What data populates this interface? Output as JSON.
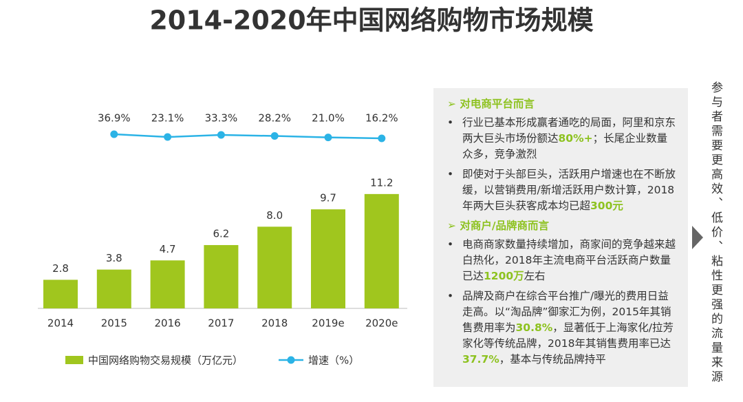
{
  "chart_data": {
    "type": "bar-line",
    "title": "2014-2020年中国网络购物市场规模",
    "categories": [
      "2014",
      "2015",
      "2016",
      "2017",
      "2018",
      "2019e",
      "2020e"
    ],
    "series": [
      {
        "name": "中国网络购物交易规模（万亿元）",
        "color": "#a0c61e",
        "values": [
          2.8,
          3.8,
          4.7,
          6.2,
          8,
          9.7,
          11.2
        ],
        "value_labels": [
          "2.8",
          "3.8",
          "4.7",
          "6.2",
          "8.0",
          "9.7",
          "11.2"
        ]
      },
      {
        "name": "增速（%）",
        "color": "#2bb3e6",
        "axis": "y2",
        "values": [
          null,
          36.9,
          23.1,
          33.3,
          28.2,
          21,
          16.2
        ],
        "value_labels": [
          null,
          "36.9%",
          "23.1%",
          "33.3%",
          "28.2%",
          "21.0%",
          "16.2%"
        ]
      }
    ],
    "ylim": [
      0,
      12
    ],
    "y2lim": [
      0,
      100
    ]
  },
  "panel": {
    "sections": [
      {
        "heading": "对电商平台而言",
        "bullets": [
          [
            "行业已基本形成赢者通吃的局面，阿里和京东两大巨头市场份额达",
            "80%+",
            "；长尾企业数量众多，竞争激烈"
          ],
          [
            "即使对于头部巨头，活跃用户增速也在不断放缓，以营销费用/新增活跃用户数计算，2018年两大巨头获客成本均已超",
            "300元"
          ]
        ]
      },
      {
        "heading": "对商户/品牌商而言",
        "bullets": [
          [
            "电商商家数量持续增加，商家间的竞争越来越白热化，2018年主流电商平台活跃商户数量已达",
            "1200万",
            "左右"
          ],
          [
            "品牌及商户在综合平台推广/曝光的费用日益走高。以“淘品牌”御家汇为例，2015年其销售费用率为",
            "30.8%",
            "，显著低于上海家化/拉芳家化等传统品牌，2018年其销售费用率已达",
            "37.7%",
            "，基本与传统品牌持平"
          ]
        ]
      }
    ]
  },
  "side_note": "参与者需要更高效、低价、粘性更强的流量来源"
}
